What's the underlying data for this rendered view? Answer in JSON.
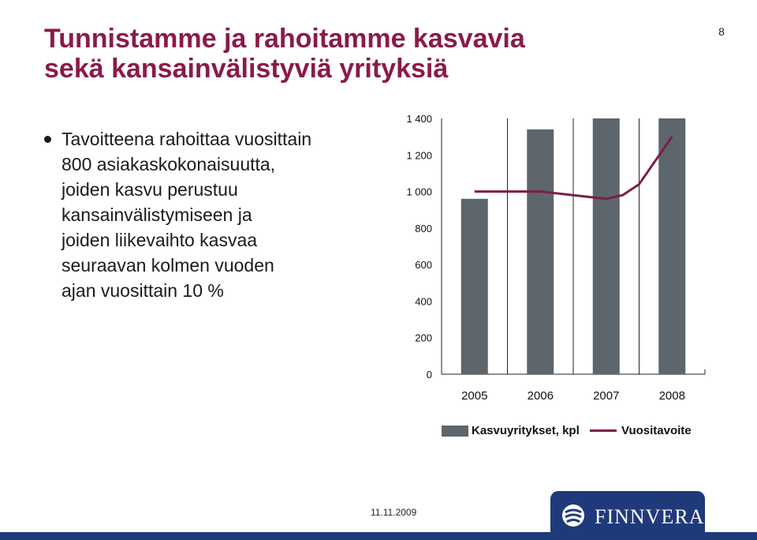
{
  "title": {
    "line1": "Tunnistamme ja rahoitamme kasvavia",
    "line2": "sekä kansainvälistyviä yrityksiä"
  },
  "page_number": "8",
  "bullet": {
    "lines": [
      "Tavoitteena rahoittaa vuosittain",
      "800 asiakaskokonaisuutta,",
      "joiden kasvu perustuu",
      "kansainvälistymiseen ja",
      "joiden liikevaihto kasvaa",
      "seuraavan kolmen vuoden",
      "ajan vuosittain 10 %"
    ]
  },
  "chart_data": {
    "type": "bar",
    "categories": [
      "2005",
      "2006",
      "2007",
      "2008"
    ],
    "series": [
      {
        "name": "Kasvuyritykset, kpl",
        "type": "bar",
        "color": "#5e666d",
        "values": [
          960,
          1340,
          1400,
          1400
        ]
      },
      {
        "name": "Vuositavoite",
        "type": "line",
        "color": "#7d1d4b",
        "x": [
          2005,
          2006,
          2006.5,
          2007,
          2007.25,
          2007.5,
          2008
        ],
        "values": [
          1000,
          1000,
          980,
          960,
          980,
          1040,
          1300
        ]
      }
    ],
    "yticks": [
      "0",
      "200",
      "400",
      "600",
      "800",
      "1 000",
      "1 200",
      "1 400"
    ],
    "ytick_values": [
      0,
      200,
      400,
      600,
      800,
      1000,
      1200,
      1400
    ],
    "ylim": [
      0,
      1400
    ],
    "grid": false,
    "legend": "bottom"
  },
  "legend": {
    "bar_label": "Kasvuyritykset, kpl",
    "line_label": "Vuositavoite"
  },
  "footer": {
    "date": "11.11.2009",
    "logo_text": "FINNVERA"
  },
  "colors": {
    "title": "#8b1a4a",
    "bar": "#5e666d",
    "line": "#7d1d4b",
    "brand": "#1f3a7a"
  }
}
